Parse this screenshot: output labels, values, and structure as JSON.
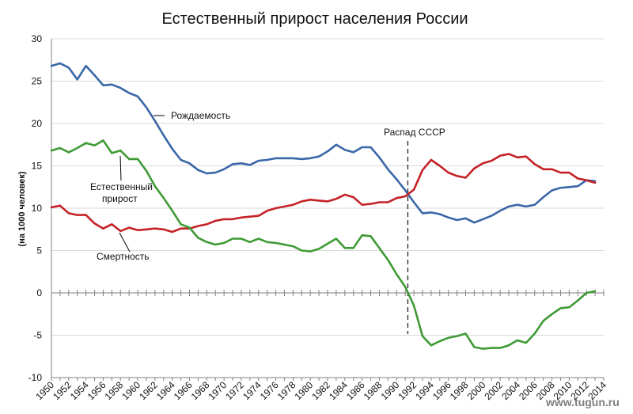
{
  "chart_data": {
    "type": "line",
    "title": "Естественный прирост населения России",
    "ylabel": "(на 1000 человек)",
    "xlim": [
      1950,
      2014
    ],
    "ylim": [
      -10,
      30
    ],
    "y_ticks": [
      "30",
      "25",
      "20",
      "15",
      "10",
      "5",
      "0",
      "-5",
      "-10"
    ],
    "x_ticks": [
      "1950",
      "1952",
      "1954",
      "1956",
      "1958",
      "1960",
      "1962",
      "1964",
      "1966",
      "1968",
      "1970",
      "1972",
      "1974",
      "1976",
      "1978",
      "1980",
      "1982",
      "1984",
      "1986",
      "1988",
      "1990",
      "1992",
      "1994",
      "1996",
      "1998",
      "2000",
      "2002",
      "2004",
      "2006",
      "2008",
      "2010",
      "2012",
      "2014"
    ],
    "grid": true,
    "x": [
      1950,
      1951,
      1952,
      1953,
      1954,
      1955,
      1956,
      1957,
      1958,
      1959,
      1960,
      1961,
      1962,
      1963,
      1964,
      1965,
      1966,
      1967,
      1968,
      1969,
      1970,
      1971,
      1972,
      1973,
      1974,
      1975,
      1976,
      1977,
      1978,
      1979,
      1980,
      1981,
      1982,
      1983,
      1984,
      1985,
      1986,
      1987,
      1988,
      1989,
      1990,
      1991,
      1992,
      1993,
      1994,
      1995,
      1996,
      1997,
      1998,
      1999,
      2000,
      2001,
      2002,
      2003,
      2004,
      2005,
      2006,
      2007,
      2008,
      2009,
      2010,
      2011,
      2012,
      2013
    ],
    "series": [
      {
        "name": "Рождаемость",
        "color": "#3a67a7",
        "values": [
          26.8,
          27.1,
          26.6,
          25.2,
          26.8,
          25.7,
          24.5,
          24.6,
          24.2,
          23.6,
          23.2,
          21.9,
          20.3,
          18.6,
          17.0,
          15.7,
          15.3,
          14.5,
          14.1,
          14.2,
          14.6,
          15.2,
          15.3,
          15.1,
          15.6,
          15.7,
          15.9,
          15.9,
          15.9,
          15.8,
          15.9,
          16.1,
          16.7,
          17.5,
          16.9,
          16.6,
          17.2,
          17.2,
          16.0,
          14.6,
          13.4,
          12.1,
          10.7,
          9.4,
          9.5,
          9.3,
          8.9,
          8.6,
          8.8,
          8.3,
          8.7,
          9.1,
          9.7,
          10.2,
          10.4,
          10.2,
          10.4,
          11.3,
          12.1,
          12.4,
          12.5,
          12.6,
          13.3,
          13.2
        ]
      },
      {
        "name": "Смертность",
        "color": "#c42227",
        "values": [
          10.1,
          10.3,
          9.4,
          9.2,
          9.2,
          8.2,
          7.6,
          8.1,
          7.3,
          7.7,
          7.4,
          7.5,
          7.6,
          7.5,
          7.2,
          7.6,
          7.6,
          7.9,
          8.1,
          8.5,
          8.7,
          8.7,
          8.9,
          9.0,
          9.1,
          9.7,
          10.0,
          10.2,
          10.4,
          10.8,
          11.0,
          10.9,
          10.8,
          11.1,
          11.6,
          11.3,
          10.4,
          10.5,
          10.7,
          10.7,
          11.2,
          11.4,
          12.2,
          14.5,
          15.7,
          15.0,
          14.2,
          13.8,
          13.6,
          14.7,
          15.3,
          15.6,
          16.2,
          16.4,
          16.0,
          16.1,
          15.2,
          14.6,
          14.6,
          14.2,
          14.2,
          13.5,
          13.3,
          13.0
        ]
      },
      {
        "name": "Естественный прирост",
        "color": "#3f9a35",
        "values": [
          16.8,
          17.1,
          16.6,
          17.1,
          17.7,
          17.4,
          18.0,
          16.5,
          16.8,
          15.8,
          15.8,
          14.4,
          12.6,
          11.2,
          9.7,
          8.1,
          7.7,
          6.5,
          6.0,
          5.7,
          5.9,
          6.4,
          6.4,
          6.0,
          6.4,
          6.0,
          5.9,
          5.7,
          5.5,
          5.0,
          4.9,
          5.2,
          5.8,
          6.4,
          5.3,
          5.3,
          6.8,
          6.7,
          5.3,
          3.9,
          2.2,
          0.7,
          -1.5,
          -5.1,
          -6.2,
          -5.7,
          -5.3,
          -5.1,
          -4.8,
          -6.4,
          -6.6,
          -6.5,
          -6.5,
          -6.2,
          -5.6,
          -5.9,
          -4.8,
          -3.3,
          -2.5,
          -1.8,
          -1.7,
          -0.9,
          0.0,
          0.2
        ]
      }
    ],
    "annotations": {
      "birth": "Рождаемость",
      "growth_line1": "Естественный",
      "growth_line2": "прирост",
      "death": "Смертность",
      "ussr": "Распад СССР"
    },
    "ussr_year": 1991.3,
    "watermark": "www.tugun.ru"
  }
}
